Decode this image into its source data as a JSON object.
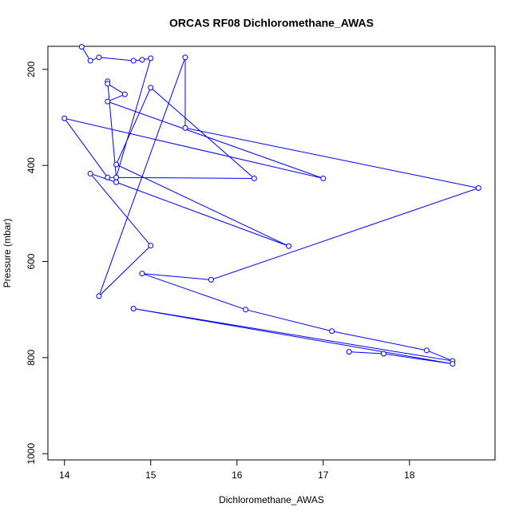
{
  "chart_data": {
    "type": "line",
    "title": "ORCAS RF08 Dichloromethane_AWAS",
    "x_label": "Dichloromethane_AWAS",
    "y_label": "Pressure (mbar)",
    "series": [
      {
        "color": "#0000ff",
        "x": [
          14.2,
          14.3,
          14.4,
          14.8,
          14.9,
          15.0,
          14.6,
          14.5,
          14.5,
          14.7,
          14.5,
          17.0,
          14.0,
          14.5,
          16.2,
          15.0,
          14.6,
          16.6,
          14.6,
          14.3,
          15.0,
          14.4,
          15.4,
          15.4,
          18.8,
          15.7,
          14.9,
          16.1,
          17.1,
          18.2,
          18.5,
          14.8,
          18.5,
          17.7,
          17.3
        ],
        "values": [
          153,
          182,
          175,
          182,
          180,
          177,
          425,
          225,
          230,
          252,
          267,
          427,
          302,
          425,
          427,
          238,
          398,
          568,
          435,
          417,
          567,
          672,
          175,
          322,
          447,
          638,
          625,
          700,
          745,
          785,
          807,
          698,
          813,
          792,
          788
        ]
      }
    ],
    "xlim": [
      13.808,
      18.992
    ],
    "xticks": [
      14,
      15,
      16,
      17,
      18
    ],
    "ylim": [
      1013,
      152
    ],
    "yticks": [
      200,
      400,
      600,
      800,
      1000
    ]
  }
}
